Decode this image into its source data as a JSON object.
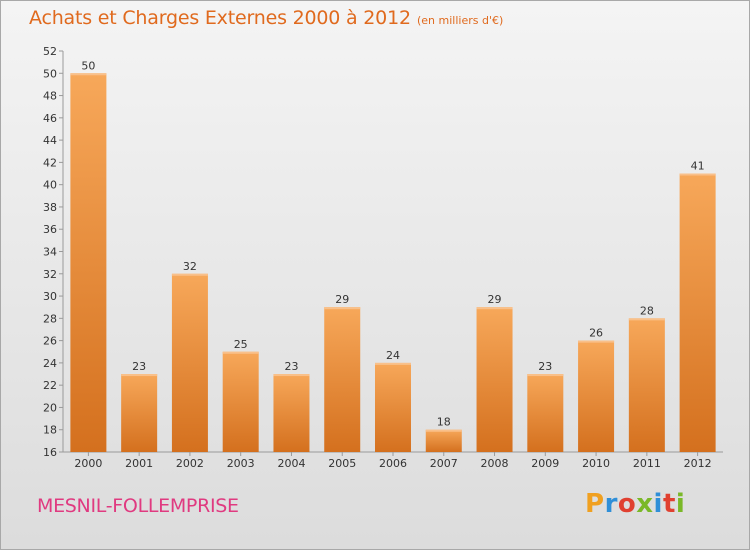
{
  "header": {
    "title": "Achats et Charges Externes 2000 à 2012",
    "subtitle": "(en milliers d'€)"
  },
  "footer": {
    "commune": "MESNIL-FOLLEMPRISE",
    "brand": "Proxiti"
  },
  "colors": {
    "title": "#e06a1e",
    "commune": "#e03a80",
    "bar_light": "#f7a85a",
    "bar_dark": "#d4701e",
    "brand_letters": [
      "#f0a020",
      "#2f8fd8",
      "#e04030",
      "#7ab828",
      "#2f8fd8",
      "#e04030",
      "#7ab828"
    ]
  },
  "chart_data": {
    "type": "bar",
    "categories": [
      "2000",
      "2001",
      "2002",
      "2003",
      "2004",
      "2005",
      "2006",
      "2007",
      "2008",
      "2009",
      "2010",
      "2011",
      "2012"
    ],
    "values": [
      50,
      23,
      32,
      25,
      23,
      29,
      24,
      18,
      29,
      23,
      26,
      28,
      41
    ],
    "title": "Achats et Charges Externes 2000 à 2012",
    "subtitle": "(en milliers d'€)",
    "xlabel": "",
    "ylabel": "",
    "ylim": [
      16,
      52
    ],
    "yticks": [
      16,
      18,
      20,
      22,
      24,
      26,
      28,
      30,
      32,
      34,
      36,
      38,
      40,
      42,
      44,
      46,
      48,
      50,
      52
    ],
    "grid": false,
    "legend": "none",
    "data_labels": true
  }
}
